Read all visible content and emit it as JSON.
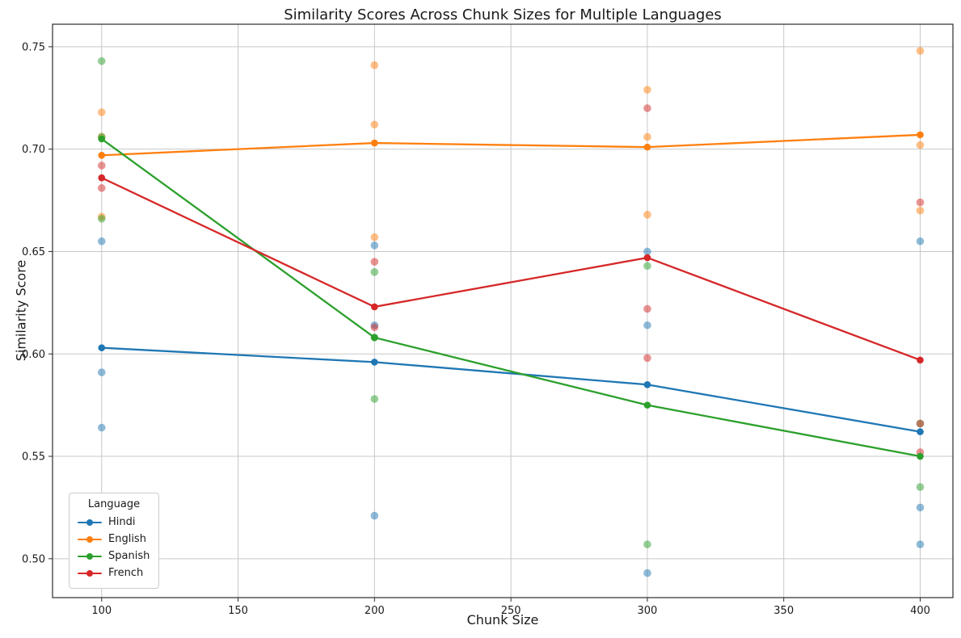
{
  "figure": {
    "background": "#ffffff",
    "text_color": "#1a1a1a",
    "grid_color": "#c8c8c8",
    "spine_color": "#2b2b2b"
  },
  "chart_data": {
    "type": "line",
    "title": "Similarity Scores Across Chunk Sizes for Multiple Languages",
    "xlabel": "Chunk Size",
    "ylabel": "Similarity Score",
    "grid": true,
    "xlim": [
      82,
      412
    ],
    "ylim": [
      0.481,
      0.761
    ],
    "xticks": [
      100,
      150,
      200,
      250,
      300,
      350,
      400
    ],
    "xtick_labels": [
      "100",
      "150",
      "200",
      "250",
      "300",
      "350",
      "400"
    ],
    "yticks": [
      0.5,
      0.55,
      0.6,
      0.65,
      0.7,
      0.75
    ],
    "ytick_labels": [
      "0.50",
      "0.55",
      "0.60",
      "0.65",
      "0.70",
      "0.75"
    ],
    "x": [
      100,
      200,
      300,
      400
    ],
    "legend": {
      "title": "Language",
      "position": "lower left"
    },
    "series": [
      {
        "name": "Hindi",
        "color": "#1f77b4",
        "line_values": [
          0.603,
          0.596,
          0.585,
          0.562
        ],
        "scatter_points": [
          [
            100,
            0.655
          ],
          [
            100,
            0.591
          ],
          [
            100,
            0.564
          ],
          [
            200,
            0.653
          ],
          [
            200,
            0.614
          ],
          [
            200,
            0.521
          ],
          [
            300,
            0.65
          ],
          [
            300,
            0.614
          ],
          [
            300,
            0.493
          ],
          [
            400,
            0.655
          ],
          [
            400,
            0.525
          ],
          [
            400,
            0.507
          ]
        ]
      },
      {
        "name": "English",
        "color": "#ff7f0e",
        "line_values": [
          0.697,
          0.703,
          0.701,
          0.707
        ],
        "scatter_points": [
          [
            100,
            0.718
          ],
          [
            100,
            0.706
          ],
          [
            100,
            0.667
          ],
          [
            200,
            0.741
          ],
          [
            200,
            0.712
          ],
          [
            200,
            0.657
          ],
          [
            300,
            0.729
          ],
          [
            300,
            0.706
          ],
          [
            300,
            0.668
          ],
          [
            400,
            0.748
          ],
          [
            400,
            0.702
          ],
          [
            400,
            0.67
          ]
        ]
      },
      {
        "name": "Spanish",
        "color": "#2ca02c",
        "line_values": [
          0.705,
          0.608,
          0.575,
          0.55
        ],
        "scatter_points": [
          [
            100,
            0.743
          ],
          [
            100,
            0.706
          ],
          [
            100,
            0.666
          ],
          [
            200,
            0.64
          ],
          [
            200,
            0.608
          ],
          [
            200,
            0.578
          ],
          [
            300,
            0.643
          ],
          [
            300,
            0.507
          ],
          [
            400,
            0.566
          ],
          [
            400,
            0.535
          ]
        ]
      },
      {
        "name": "French",
        "color": "#d62728",
        "line_values": [
          0.686,
          0.623,
          0.647,
          0.597
        ],
        "scatter_points": [
          [
            100,
            0.692
          ],
          [
            100,
            0.681
          ],
          [
            200,
            0.645
          ],
          [
            200,
            0.613
          ],
          [
            300,
            0.72
          ],
          [
            300,
            0.622
          ],
          [
            300,
            0.598
          ],
          [
            400,
            0.674
          ],
          [
            400,
            0.566
          ],
          [
            400,
            0.552
          ]
        ]
      }
    ],
    "style": {
      "line_width": 2.3,
      "line_marker_radius": 4.3,
      "scatter_radius": 4.8,
      "scatter_opacity": 0.5
    }
  }
}
